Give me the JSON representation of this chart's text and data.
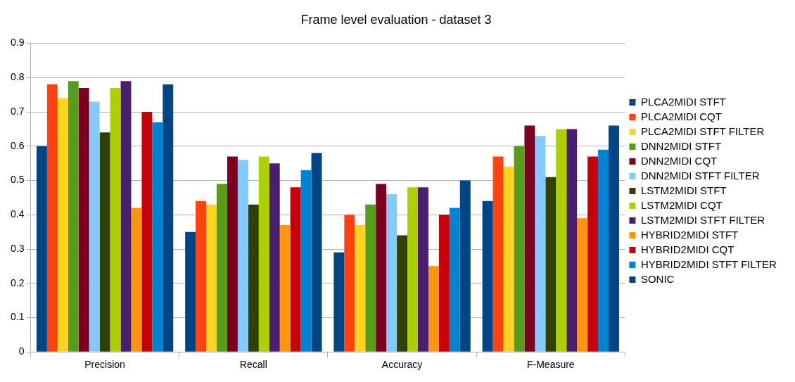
{
  "chart_data": {
    "type": "bar",
    "title": "Frame level evaluation - dataset 3",
    "categories": [
      "Precision",
      "Recall",
      "Accuracy",
      "F-Measure"
    ],
    "series": [
      {
        "name": "PLCA2MIDI STFT",
        "color": "#004586",
        "values": [
          0.6,
          0.35,
          0.29,
          0.44
        ]
      },
      {
        "name": "PLCA2MIDI CQT",
        "color": "#ff420e",
        "values": [
          0.78,
          0.44,
          0.4,
          0.57
        ]
      },
      {
        "name": "PLCA2MIDI STFT FILTER",
        "color": "#ffd320",
        "values": [
          0.74,
          0.43,
          0.37,
          0.54
        ]
      },
      {
        "name": "DNN2MIDI STFT",
        "color": "#579d1c",
        "values": [
          0.79,
          0.49,
          0.43,
          0.6
        ]
      },
      {
        "name": "DNN2MIDI CQT",
        "color": "#7e0021",
        "values": [
          0.77,
          0.57,
          0.49,
          0.66
        ]
      },
      {
        "name": "DNN2MIDI STFT FILTER",
        "color": "#83caff",
        "values": [
          0.73,
          0.56,
          0.46,
          0.63
        ]
      },
      {
        "name": "LSTM2MIDI STFT",
        "color": "#314004",
        "values": [
          0.64,
          0.43,
          0.34,
          0.51
        ]
      },
      {
        "name": "LSTM2MIDI CQT",
        "color": "#aecf00",
        "values": [
          0.77,
          0.57,
          0.48,
          0.65
        ]
      },
      {
        "name": "LSTM2MIDI STFT FILTER",
        "color": "#4b1f6f",
        "values": [
          0.79,
          0.55,
          0.48,
          0.65
        ]
      },
      {
        "name": "HYBRID2MIDI STFT",
        "color": "#ff950e",
        "values": [
          0.42,
          0.37,
          0.25,
          0.39
        ]
      },
      {
        "name": "HYBRID2MIDI CQT",
        "color": "#c5000b",
        "values": [
          0.7,
          0.48,
          0.4,
          0.57
        ]
      },
      {
        "name": "HYBRID2MIDI STFT FILTER",
        "color": "#0084d1",
        "values": [
          0.67,
          0.53,
          0.42,
          0.59
        ]
      },
      {
        "name": "SONIC",
        "color": "#004586",
        "values": [
          0.78,
          0.58,
          0.5,
          0.66
        ]
      }
    ],
    "ylim": [
      0,
      0.9
    ],
    "yticks": [
      0,
      0.1,
      0.2,
      0.3,
      0.4,
      0.5,
      0.6,
      0.7,
      0.8,
      0.9
    ],
    "grid": "y",
    "legend": "right"
  }
}
